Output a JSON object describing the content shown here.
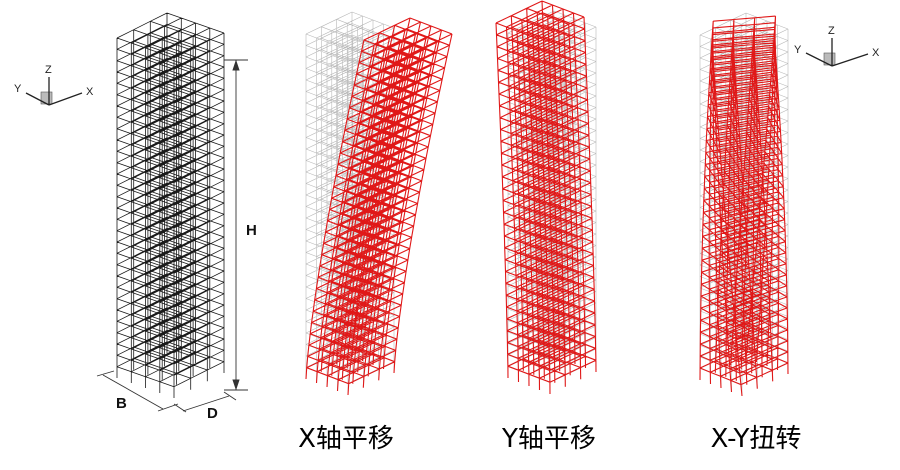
{
  "colors": {
    "original_frame": "#1a1a1a",
    "undeformed_frame": "#b8b8b8",
    "deformed_frame": "#e01818"
  },
  "axes_triad_left": {
    "z": "Z",
    "y": "Y",
    "x": "X"
  },
  "axes_triad_right": {
    "z": "Z",
    "y": "Y",
    "x": "X"
  },
  "dimensions": {
    "height": "H",
    "width": "B",
    "depth": "D"
  },
  "structure": {
    "floors": 30,
    "bays_b": 4,
    "bays_d": 3
  },
  "captions": [
    {
      "label": "X轴平移",
      "mode": "x-translation"
    },
    {
      "label": "Y轴平移",
      "mode": "y-translation"
    },
    {
      "label": "X-Y扭转",
      "mode": "torsion"
    }
  ]
}
